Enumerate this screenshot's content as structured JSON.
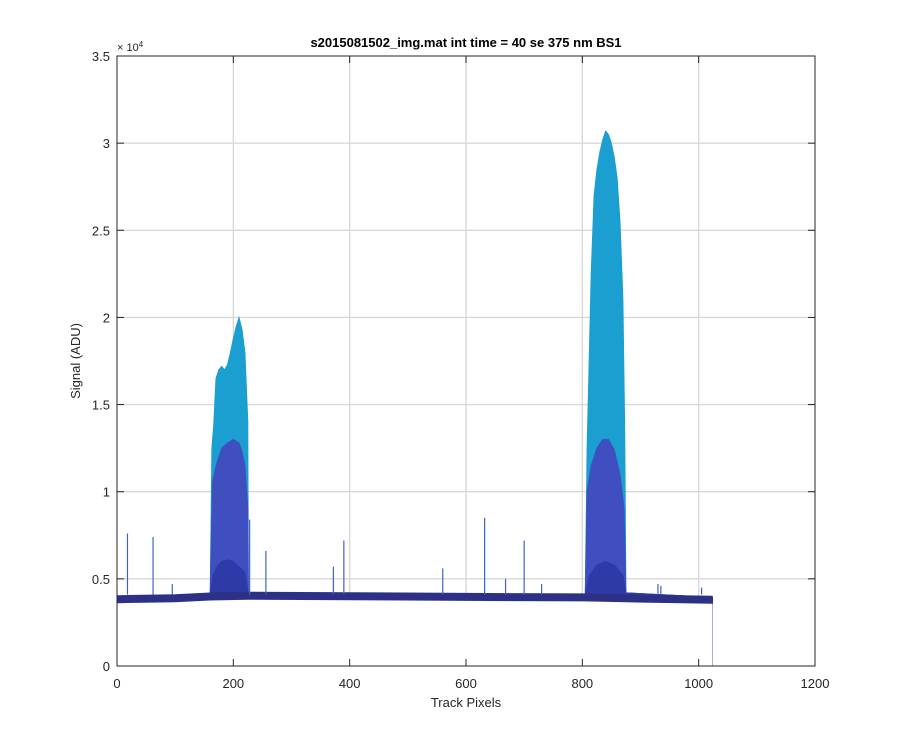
{
  "chart_data": {
    "type": "area",
    "title": "s2015081502_img.mat int time = 40 se  375 nm BS1",
    "xlabel": "Track Pixels",
    "ylabel": "Signal (ADU)",
    "xlim": [
      0,
      1200
    ],
    "ylim": [
      0,
      35000
    ],
    "x_ticks": [
      0,
      200,
      400,
      600,
      800,
      1000,
      1200
    ],
    "y_ticks": [
      0,
      5000,
      10000,
      15000,
      20000,
      25000,
      30000,
      35000
    ],
    "x_tick_labels": [
      "0",
      "200",
      "400",
      "600",
      "800",
      "1000",
      "1200"
    ],
    "y_tick_labels": [
      "0",
      "0.5",
      "1",
      "1.5",
      "2",
      "2.5",
      "3",
      "3.5"
    ],
    "y_exponent_label": "× 10",
    "y_exponent_power": "4",
    "grid": true,
    "colors": {
      "envelope": "#1b9fd0",
      "middle": "#3f4fc0",
      "inner": "#2e3aa8",
      "baseline": "#2c3185"
    },
    "series": [
      {
        "color_key": "envelope",
        "x": [
          0,
          160,
          163,
          166,
          170,
          175,
          180,
          185,
          190,
          195,
          200,
          205,
          210,
          215,
          220,
          225,
          226,
          805,
          808,
          812,
          815,
          820,
          825,
          830,
          835,
          840,
          845,
          850,
          855,
          860,
          865,
          870,
          873,
          875,
          1024
        ],
        "y": [
          4000,
          4100,
          12500,
          13800,
          16500,
          17000,
          17200,
          17000,
          17300,
          18000,
          18800,
          19500,
          20000,
          19300,
          18000,
          14000,
          4100,
          4100,
          12500,
          18000,
          22500,
          27000,
          28500,
          29500,
          30200,
          30700,
          30500,
          30000,
          29200,
          28000,
          25500,
          21000,
          13500,
          4200,
          3950
        ]
      },
      {
        "color_key": "middle",
        "x": [
          0,
          160,
          164,
          170,
          180,
          190,
          200,
          210,
          215,
          220,
          225,
          226,
          805,
          808,
          815,
          825,
          835,
          845,
          855,
          865,
          872,
          875,
          1024
        ],
        "y": [
          4000,
          4100,
          10500,
          11500,
          12500,
          12800,
          13000,
          12800,
          12300,
          11500,
          9000,
          4100,
          4100,
          10000,
          11500,
          12500,
          13000,
          13000,
          12400,
          11000,
          9000,
          4200,
          3950
        ]
      },
      {
        "color_key": "inner",
        "x": [
          0,
          160,
          165,
          172,
          180,
          190,
          200,
          210,
          220,
          226,
          805,
          812,
          825,
          840,
          855,
          870,
          875,
          1024
        ],
        "y": [
          4000,
          4100,
          5200,
          5700,
          6000,
          6100,
          6000,
          5700,
          5400,
          4100,
          4100,
          5200,
          5800,
          6000,
          5800,
          5200,
          4200,
          3950
        ]
      },
      {
        "color_key": "baseline",
        "x": [
          0,
          100,
          160,
          226,
          400,
          600,
          805,
          875,
          1024
        ],
        "y": [
          3950,
          4000,
          4100,
          4150,
          4120,
          4080,
          4050,
          4000,
          3920
        ]
      }
    ],
    "spikes": [
      {
        "x": 18,
        "y": 7600
      },
      {
        "x": 62,
        "y": 7400
      },
      {
        "x": 95,
        "y": 4700
      },
      {
        "x": 228,
        "y": 8400
      },
      {
        "x": 256,
        "y": 6600
      },
      {
        "x": 372,
        "y": 5700
      },
      {
        "x": 390,
        "y": 7200
      },
      {
        "x": 560,
        "y": 5600
      },
      {
        "x": 632,
        "y": 8500
      },
      {
        "x": 668,
        "y": 5000
      },
      {
        "x": 700,
        "y": 7200
      },
      {
        "x": 730,
        "y": 4700
      },
      {
        "x": 930,
        "y": 4700
      },
      {
        "x": 935,
        "y": 4600
      },
      {
        "x": 1005,
        "y": 4500
      }
    ]
  }
}
